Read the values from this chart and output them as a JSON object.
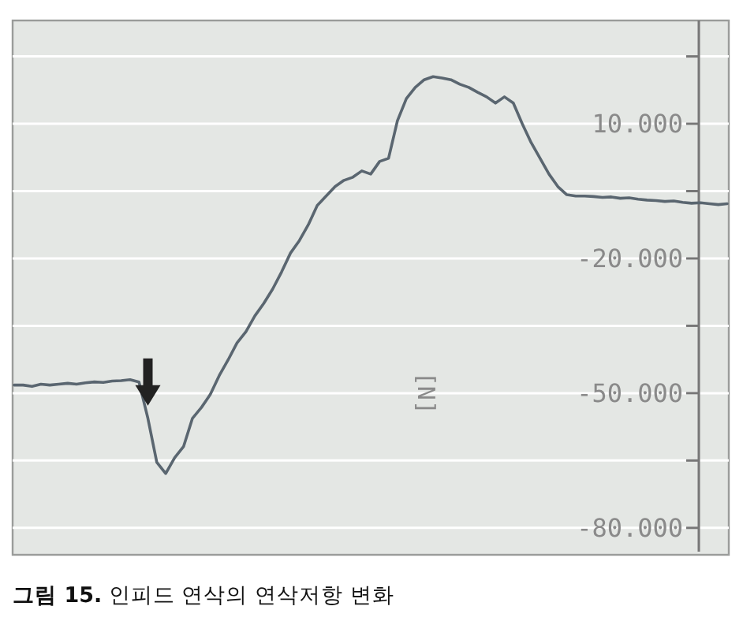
{
  "chart_data": {
    "type": "line",
    "ylabel": "[N]",
    "annotations": [
      "그림 15. 인피드 연삭의 연삭저항 변화"
    ],
    "categories": [
      null,
      null,
      null,
      null,
      null,
      null,
      null,
      null,
      null,
      null,
      null,
      null,
      null,
      null,
      null,
      null,
      null,
      null,
      null,
      null,
      null,
      null,
      null,
      null,
      null,
      null,
      null,
      null,
      null,
      null,
      null,
      null,
      null,
      null,
      null,
      null,
      null,
      null,
      null,
      null,
      null,
      null,
      null,
      null,
      null,
      null,
      null,
      null,
      null,
      null,
      null,
      null,
      null,
      null,
      null,
      null,
      null,
      null,
      null,
      null,
      null,
      null,
      null,
      null,
      null,
      null,
      null,
      null,
      null,
      null,
      null,
      null,
      null,
      null,
      null,
      null,
      null,
      null,
      null,
      null,
      null
    ],
    "series": [
      {
        "color": "#5a6670",
        "values": [
          -48.2,
          -48.2,
          -48.5,
          -48,
          -48.2,
          -48,
          -47.8,
          -48,
          -47.7,
          -47.5,
          -47.6,
          -47.3,
          -47.2,
          -47,
          -47.5,
          -55.6,
          -65.4,
          -67.9,
          -64.4,
          -61.9,
          -55.6,
          -53.2,
          -50.3,
          -46.1,
          -42.6,
          -38.8,
          -36.3,
          -32.8,
          -30,
          -26.8,
          -23,
          -18.8,
          -16,
          -12.5,
          -8.2,
          -6.1,
          -4,
          -2.6,
          -1.9,
          -0.5,
          -1.2,
          1.6,
          2.3,
          10.7,
          15.6,
          18.1,
          19.8,
          20.5,
          20.2,
          19.8,
          18.8,
          18.1,
          17,
          16,
          14.6,
          16,
          14.6,
          10,
          5.8,
          2.3,
          -1.2,
          -4,
          -5.8,
          -6.1,
          -6.1,
          -6.2,
          -6.4,
          -6.3,
          -6.6,
          -6.5,
          -6.8,
          -7,
          -7.1,
          -7.3,
          -7.2,
          -7.5,
          -7.7,
          -7.6,
          -7.8,
          -8,
          -7.8
        ]
      }
    ],
    "ylim": [
      -86,
      33
    ],
    "yticks": [
      {
        "value": 25,
        "label": null
      },
      {
        "value": 10,
        "label": "10.000"
      },
      {
        "value": -5,
        "label": null
      },
      {
        "value": -20,
        "label": "-20.000"
      },
      {
        "value": -35,
        "label": null
      },
      {
        "value": -50,
        "label": "-50.000"
      },
      {
        "value": -65,
        "label": null
      },
      {
        "value": -80,
        "label": "-80.000"
      }
    ],
    "grid": "y",
    "marker": "none",
    "line_style": "solid"
  }
}
